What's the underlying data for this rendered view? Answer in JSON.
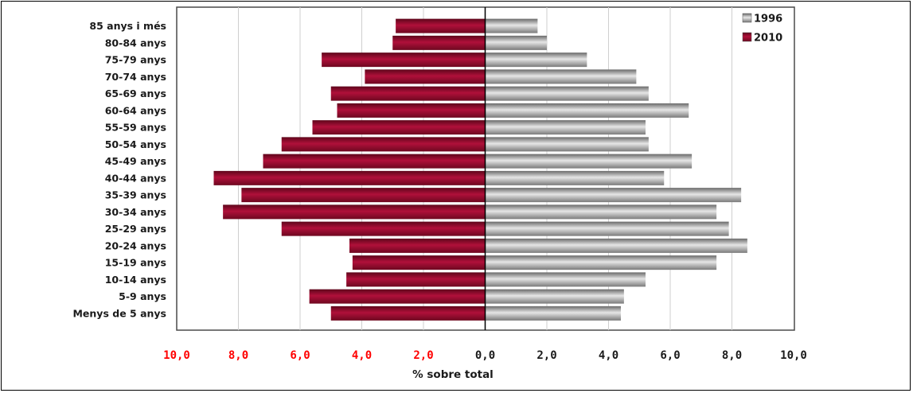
{
  "chart_data": {
    "type": "bar",
    "orientation": "horizontal",
    "layout": "population-pyramid",
    "categories": [
      "85 anys i més",
      "80-84 anys",
      "75-79 anys",
      "70-74 anys",
      "65-69 anys",
      "60-64 anys",
      "55-59 anys",
      "50-54 anys",
      "45-49 anys",
      "40-44 anys",
      "35-39 anys",
      "30-34 anys",
      "25-29 anys",
      "20-24 anys",
      "15-19 anys",
      "10-14 anys",
      "5-9 anys",
      "Menys de 5 anys"
    ],
    "series": [
      {
        "name": "1996",
        "side": "right",
        "color": "#9a9a9a",
        "values": [
          1.7,
          2.0,
          3.3,
          4.9,
          5.3,
          6.6,
          5.2,
          5.3,
          6.7,
          5.8,
          8.3,
          7.5,
          7.9,
          8.5,
          7.5,
          5.2,
          4.5,
          4.4
        ]
      },
      {
        "name": "2010",
        "side": "left",
        "color": "#8b0a2a",
        "values": [
          2.9,
          3.0,
          5.3,
          3.9,
          5.0,
          4.8,
          5.6,
          6.6,
          7.2,
          8.8,
          7.9,
          8.5,
          6.6,
          4.4,
          4.3,
          4.5,
          5.7,
          5.0
        ]
      }
    ],
    "xlabel": "% sobre total",
    "xlim": [
      -10,
      10
    ],
    "xticks": [
      "10,0",
      "8,0",
      "6,0",
      "4,0",
      "2,0",
      "0,0",
      "2,0",
      "4,0",
      "6,0",
      "8,0",
      "10,0"
    ],
    "left_tick_color": "#ff0000",
    "right_tick_color": "#1a1a1a",
    "grid": true,
    "legend_position": "top-right"
  }
}
